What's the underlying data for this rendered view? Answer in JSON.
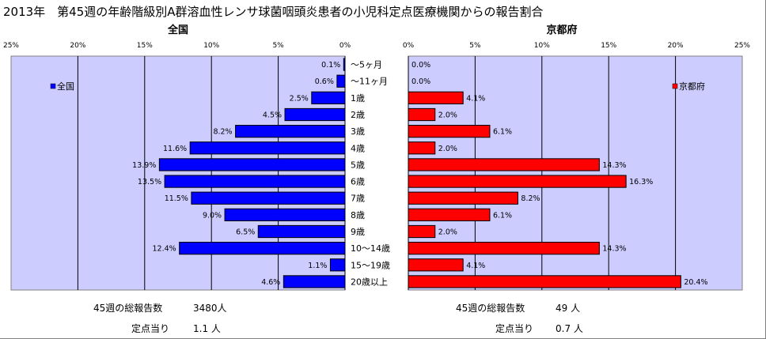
{
  "title": "2013年　第45週の年齢階級別A群溶血性レンサ球菌咽頭炎患者の小児科定点医療機関からの報告割合",
  "categories": [
    "～5ヶ月",
    "～11ヶ月",
    "1歳",
    "2歳",
    "3歳",
    "4歳",
    "5歳",
    "6歳",
    "7歳",
    "8歳",
    "9歳",
    "10～14歳",
    "15～19歳",
    "20歳以上"
  ],
  "colors": {
    "national": "#0000ff",
    "kyoto": "#ff0000",
    "plot_bg": "#ccccff",
    "grid": "#000000"
  },
  "chart_data": [
    {
      "type": "bar",
      "orientation": "horizontal",
      "title": "全国",
      "direction": "right-to-left",
      "xlim": [
        0,
        25
      ],
      "ticks": [
        "0%",
        "5%",
        "10%",
        "15%",
        "20%",
        "25%"
      ],
      "categories": [
        "～5ヶ月",
        "～11ヶ月",
        "1歳",
        "2歳",
        "3歳",
        "4歳",
        "5歳",
        "6歳",
        "7歳",
        "8歳",
        "9歳",
        "10～14歳",
        "15～19歳",
        "20歳以上"
      ],
      "series": [
        {
          "name": "全国",
          "values": [
            0.1,
            0.6,
            2.5,
            4.5,
            8.2,
            11.6,
            13.9,
            13.5,
            11.5,
            9.0,
            6.5,
            12.4,
            1.1,
            4.6
          ],
          "labels": [
            "0.1%",
            "0.6%",
            "2.5%",
            "4.5%",
            "8.2%",
            "11.6%",
            "13.9%",
            "13.5%",
            "11.5%",
            "9.0%",
            "6.5%",
            "12.4%",
            "1.1%",
            "4.6%"
          ]
        }
      ],
      "legend": "top-left",
      "grid": true
    },
    {
      "type": "bar",
      "orientation": "horizontal",
      "title": "京都府",
      "direction": "left-to-right",
      "xlim": [
        0,
        25
      ],
      "ticks": [
        "0%",
        "5%",
        "10%",
        "15%",
        "20%",
        "25%"
      ],
      "categories": [
        "～5ヶ月",
        "～11ヶ月",
        "1歳",
        "2歳",
        "3歳",
        "4歳",
        "5歳",
        "6歳",
        "7歳",
        "8歳",
        "9歳",
        "10～14歳",
        "15～19歳",
        "20歳以上"
      ],
      "series": [
        {
          "name": "京都府",
          "values": [
            0.0,
            0.0,
            4.1,
            2.0,
            6.1,
            2.0,
            14.3,
            16.3,
            8.2,
            6.1,
            2.0,
            14.3,
            4.1,
            20.4
          ],
          "labels": [
            "0.0%",
            "0.0%",
            "4.1%",
            "2.0%",
            "6.1%",
            "2.0%",
            "14.3%",
            "16.3%",
            "8.2%",
            "6.1%",
            "2.0%",
            "14.3%",
            "4.1%",
            "20.4%"
          ]
        }
      ],
      "legend": "top-right",
      "grid": true
    }
  ],
  "footer": {
    "national": {
      "total_label": "45週の総報告数",
      "total_value": "3480人",
      "per_label": "定点当り",
      "per_value": "1.1 人"
    },
    "kyoto": {
      "total_label": "45週の総報告数",
      "total_value": "49 人",
      "per_label": "定点当り",
      "per_value": "0.7 人"
    }
  }
}
